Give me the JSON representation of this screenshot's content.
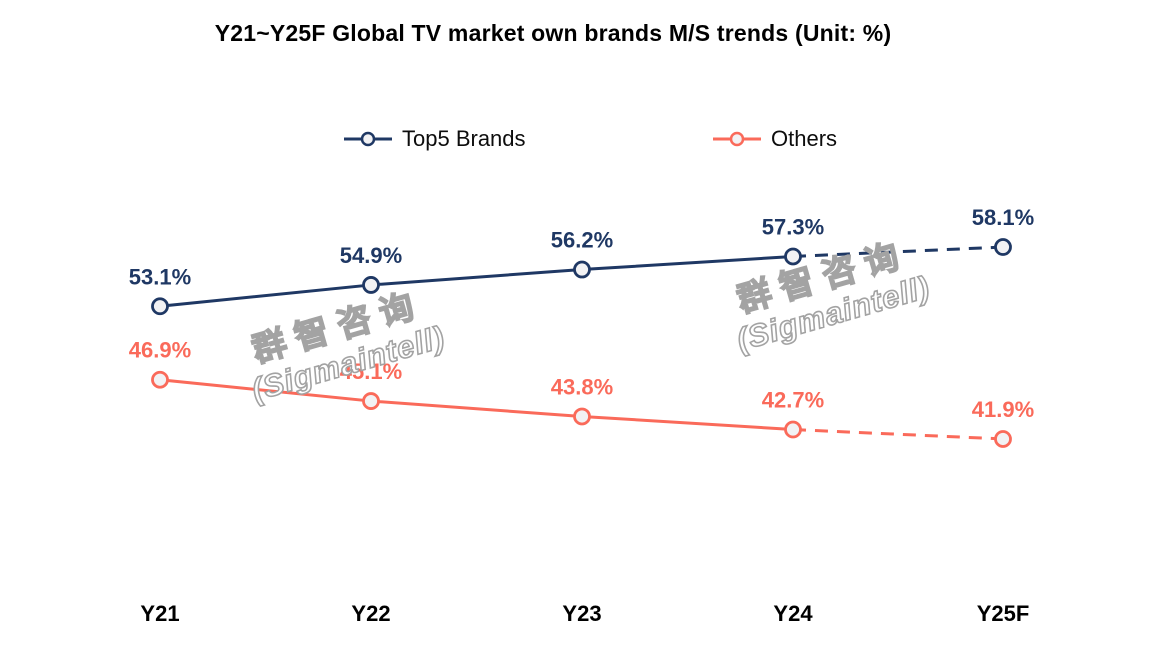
{
  "title": "Y21~Y25F Global TV market own brands M/S trends (Unit: %)",
  "legend": {
    "items": [
      {
        "label": "Top5 Brands",
        "color": "#1f3864"
      },
      {
        "label": "Others",
        "color": "#fa6a5a"
      }
    ]
  },
  "watermark": {
    "line1": "群智咨询",
    "line2": "(Sigmaintell)"
  },
  "colors": {
    "top5": "#1f3864",
    "others": "#fa6a5a",
    "marker_fill": "#f2f2f4",
    "text": "#000000",
    "watermark_outline": "#a3a3a3"
  },
  "chart_data": {
    "type": "line",
    "title": "Y21~Y25F Global TV market own brands M/S trends (Unit: %)",
    "categories": [
      "Y21",
      "Y22",
      "Y23",
      "Y24",
      "Y25F"
    ],
    "series": [
      {
        "name": "Top5 Brands",
        "color": "#1f3864",
        "values": [
          53.1,
          54.9,
          56.2,
          57.3,
          58.1
        ],
        "labels": [
          "53.1%",
          "54.9%",
          "56.2%",
          "57.3%",
          "58.1%"
        ],
        "forecast_from_index": 3
      },
      {
        "name": "Others",
        "color": "#fa6a5a",
        "values": [
          46.9,
          45.1,
          43.8,
          42.7,
          41.9
        ],
        "labels": [
          "46.9%",
          "45.1%",
          "43.8%",
          "42.7%",
          "41.9%"
        ],
        "forecast_from_index": 3
      }
    ],
    "xlabel": "",
    "ylabel": "",
    "grid": false,
    "axes_visible": false,
    "legend_position": "top",
    "data_label_format": "{value}%",
    "unit": "%"
  }
}
